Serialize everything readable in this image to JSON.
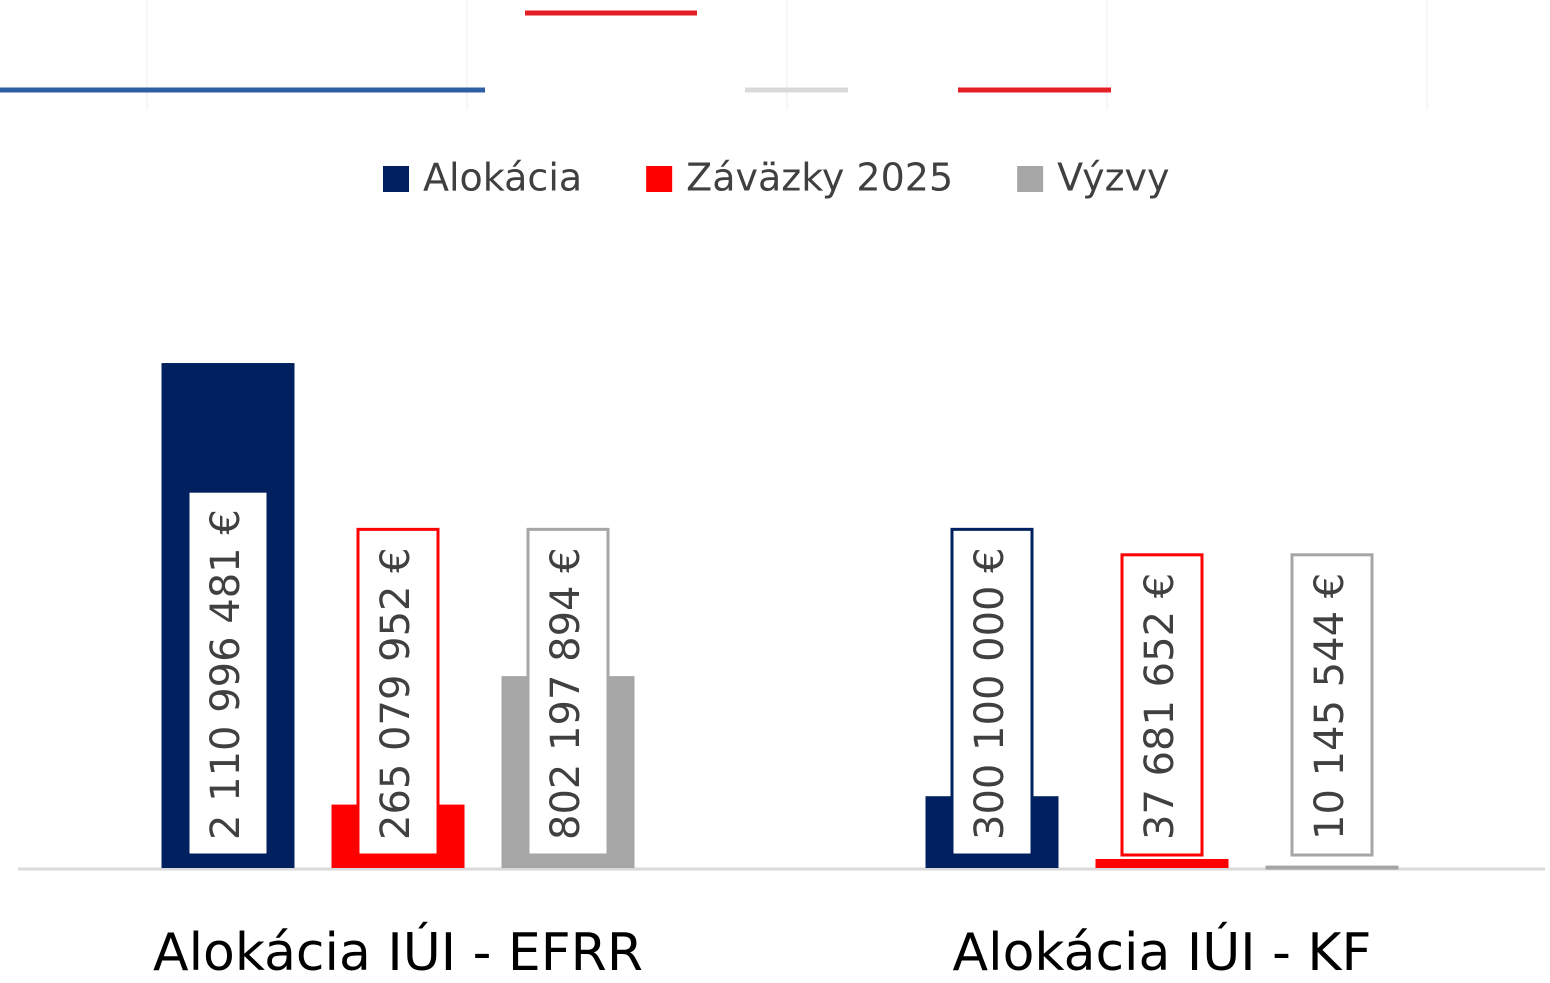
{
  "chart_data": {
    "type": "bar",
    "categories": [
      "Alokácia IÚI - EFRR",
      "Alokácia IÚI - KF"
    ],
    "series": [
      {
        "name": "Alokácia",
        "color": "#002060",
        "values": [
          2110996481,
          300100000
        ],
        "value_labels": [
          "2 110 996 481 €",
          "300 100 000 €"
        ]
      },
      {
        "name": "Záväzky 2025",
        "color": "#ff0000",
        "values": [
          265079952,
          37681652
        ],
        "value_labels": [
          "265 079 952 €",
          "37 681 652 €"
        ]
      },
      {
        "name": "Výzvy",
        "color": "#a6a6a6",
        "values": [
          802197894,
          10145544
        ],
        "value_labels": [
          "802 197 894 €",
          "10 145 544 €"
        ]
      }
    ],
    "ylim": [
      0,
      2500000000
    ]
  }
}
